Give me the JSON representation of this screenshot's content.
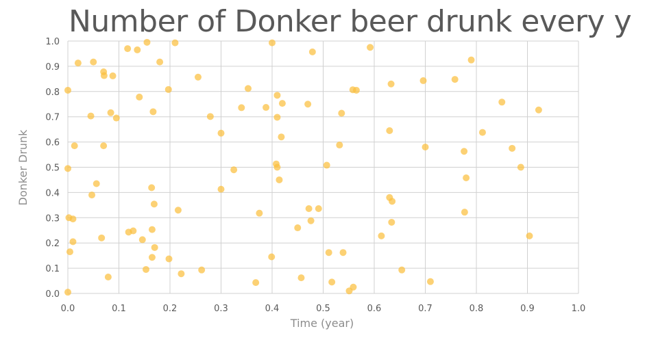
{
  "chart_data": {
    "type": "scatter",
    "title": "Number of Donker beer drunk every y",
    "xlabel": "Time (year)",
    "ylabel": "Donker Drunk",
    "xlim": [
      0,
      1
    ],
    "ylim": [
      0,
      1
    ],
    "x_ticks": [
      "0.0",
      "0.1",
      "0.2",
      "0.3",
      "0.4",
      "0.5",
      "0.6",
      "0.7",
      "0.8",
      "0.9",
      "1.0"
    ],
    "y_ticks": [
      "0.0",
      "0.1",
      "0.2",
      "0.3",
      "0.4",
      "0.5",
      "0.6",
      "0.7",
      "0.8",
      "0.9",
      "1.0"
    ],
    "grid": true,
    "color": "#fbbf3f",
    "series": [
      {
        "x": [
          0.0,
          0.0,
          0.0,
          0.002,
          0.004,
          0.01,
          0.01,
          0.013,
          0.02,
          0.045,
          0.047,
          0.05,
          0.056,
          0.066,
          0.07,
          0.07,
          0.071,
          0.079,
          0.084,
          0.088,
          0.095,
          0.117,
          0.119,
          0.128,
          0.136,
          0.14,
          0.146,
          0.153,
          0.155,
          0.164,
          0.165,
          0.165,
          0.167,
          0.169,
          0.17,
          0.18,
          0.197,
          0.198,
          0.21,
          0.216,
          0.222,
          0.255,
          0.262,
          0.279,
          0.3,
          0.3,
          0.325,
          0.34,
          0.353,
          0.368,
          0.375,
          0.388,
          0.399,
          0.4,
          0.408,
          0.41,
          0.41,
          0.41,
          0.414,
          0.418,
          0.42,
          0.45,
          0.457,
          0.47,
          0.472,
          0.476,
          0.479,
          0.491,
          0.507,
          0.511,
          0.517,
          0.532,
          0.536,
          0.539,
          0.551,
          0.558,
          0.559,
          0.565,
          0.592,
          0.614,
          0.63,
          0.63,
          0.633,
          0.634,
          0.635,
          0.654,
          0.696,
          0.7,
          0.71,
          0.758,
          0.776,
          0.777,
          0.78,
          0.79,
          0.812,
          0.85,
          0.87,
          0.887,
          0.904,
          0.922
        ],
        "y": [
          0.805,
          0.495,
          0.005,
          0.3,
          0.165,
          0.295,
          0.205,
          0.585,
          0.913,
          0.703,
          0.39,
          0.917,
          0.435,
          0.22,
          0.585,
          0.878,
          0.863,
          0.065,
          0.716,
          0.862,
          0.695,
          0.97,
          0.243,
          0.248,
          0.965,
          0.778,
          0.213,
          0.095,
          0.995,
          0.419,
          0.143,
          0.253,
          0.72,
          0.354,
          0.182,
          0.917,
          0.808,
          0.137,
          0.993,
          0.33,
          0.078,
          0.857,
          0.093,
          0.701,
          0.413,
          0.635,
          0.49,
          0.736,
          0.812,
          0.043,
          0.318,
          0.737,
          0.145,
          0.993,
          0.513,
          0.698,
          0.785,
          0.5,
          0.45,
          0.62,
          0.753,
          0.26,
          0.062,
          0.75,
          0.336,
          0.288,
          0.957,
          0.336,
          0.508,
          0.162,
          0.045,
          0.588,
          0.714,
          0.162,
          0.01,
          0.807,
          0.025,
          0.805,
          0.975,
          0.228,
          0.645,
          0.38,
          0.83,
          0.282,
          0.365,
          0.093,
          0.843,
          0.58,
          0.047,
          0.848,
          0.563,
          0.322,
          0.458,
          0.925,
          0.638,
          0.758,
          0.575,
          0.5,
          0.228,
          0.727
        ]
      }
    ]
  }
}
